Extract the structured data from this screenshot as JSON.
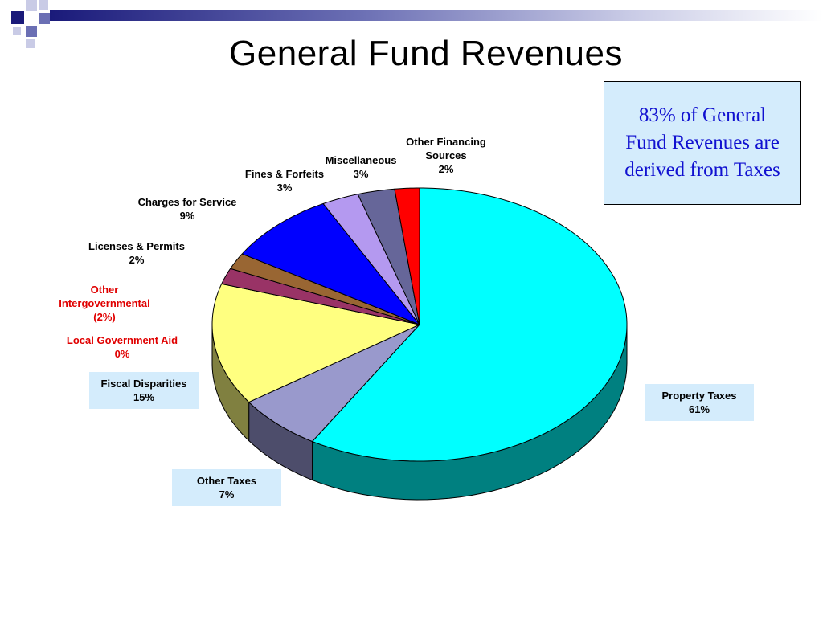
{
  "title": "General Fund Revenues",
  "callout": {
    "text": "83% of General Fund Revenues are derived from Taxes"
  },
  "colors": {
    "header_dark": "#1a1a7a",
    "deco_squares": [
      "#1a1a7a",
      "#6b6fb4",
      "#c9cbe6"
    ],
    "callout_bg": "#d4ecfc",
    "callout_text": "#1010d0",
    "red_label": "#e00000"
  },
  "chart_data": {
    "type": "pie",
    "style": "3d",
    "unit": "%",
    "slices": [
      {
        "label": "Property Taxes",
        "value": 61,
        "value_text": "61%",
        "color": "#00ffff",
        "side": "#008080",
        "label_color": "#000000",
        "label_box": true
      },
      {
        "label": "Other Taxes",
        "value": 7,
        "value_text": "7%",
        "color": "#9999cc",
        "side": "#4d4d6b",
        "label_color": "#000000",
        "label_box": true
      },
      {
        "label": "Fiscal Disparities",
        "value": 15,
        "value_text": "15%",
        "color": "#ffff80",
        "side": "#808040",
        "label_color": "#000000",
        "label_box": true
      },
      {
        "label": "Local Government Aid",
        "value": 0,
        "value_text": "0%",
        "color": "#800000",
        "side": "#400000",
        "label_color": "#e00000",
        "label_box": false
      },
      {
        "label": "Other Intergovernmental",
        "value": 2,
        "value_text": "(2%)",
        "color": "#993366",
        "side": "#4d1a33",
        "label_color": "#e00000",
        "label_box": false
      },
      {
        "label": "Licenses & Permits",
        "value": 2,
        "value_text": "2%",
        "color": "#996633",
        "side": "#4d331a",
        "label_color": "#000000",
        "label_box": false
      },
      {
        "label": "Charges for Service",
        "value": 9,
        "value_text": "9%",
        "color": "#0000ff",
        "side": "#000080",
        "label_color": "#000000",
        "label_box": false
      },
      {
        "label": "Fines & Forfeits",
        "value": 3,
        "value_text": "3%",
        "color": "#b499f0",
        "side": "#5a4d78",
        "label_color": "#000000",
        "label_box": false
      },
      {
        "label": "Miscellaneous",
        "value": 3,
        "value_text": "3%",
        "color": "#666699",
        "side": "#33334d",
        "label_color": "#000000",
        "label_box": false
      },
      {
        "label": "Other Financing Sources",
        "value": 2,
        "value_text": "2%",
        "color": "#ff0000",
        "side": "#800000",
        "label_color": "#000000",
        "label_box": false
      }
    ]
  }
}
